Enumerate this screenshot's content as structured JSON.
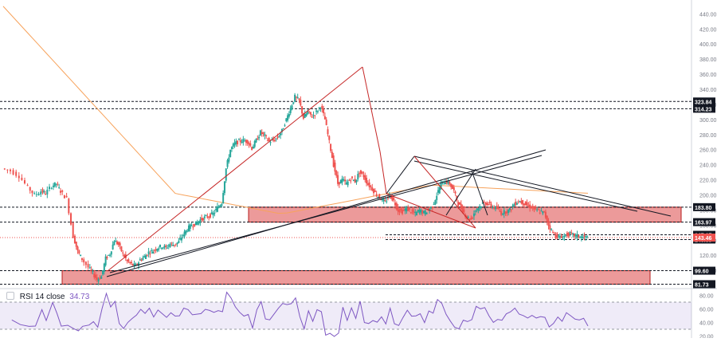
{
  "chart_data": [
    {
      "type": "candlestick",
      "y_axis": {
        "ticks": [
          100,
          120,
          140,
          160,
          180,
          200,
          220,
          240,
          260,
          280,
          300,
          320,
          340,
          360,
          380,
          400,
          420,
          440
        ],
        "tick_labels": [
          "100.00",
          "120.00",
          "140.00",
          "160.00",
          "180.00",
          "200.00",
          "220.00",
          "240.00",
          "260.00",
          "280.00",
          "300.00",
          "320.00",
          "340.00",
          "360.00",
          "380.00",
          "400.00",
          "420.00",
          "440.00"
        ],
        "ylim": [
          78,
          452
        ]
      },
      "level_lines": [
        {
          "value": 323.84,
          "label": "323.84"
        },
        {
          "value": 314.23,
          "label": "314.23"
        },
        {
          "value": 183.8,
          "label": "183.80"
        },
        {
          "value": 163.97,
          "label": "163.97"
        },
        {
          "value": 147.17,
          "label": "147.17"
        },
        {
          "value": 140.89,
          "label": "140.89"
        },
        {
          "value": 99.6,
          "label": "99.60"
        },
        {
          "value": 81.73,
          "label": "81.73"
        }
      ],
      "current_price": {
        "value": 143.46,
        "label": "143.46"
      },
      "zones": [
        {
          "from": 163.97,
          "to": 183.8
        },
        {
          "from": 81.73,
          "to": 99.6
        }
      ],
      "moving_average_color": "#f7a35c",
      "up_color": "#26a69a",
      "down_color": "#ef5350",
      "price_path": [
        [
          0,
          235
        ],
        [
          4,
          232
        ],
        [
          8,
          225
        ],
        [
          12,
          210
        ],
        [
          15,
          200
        ],
        [
          18,
          205
        ],
        [
          20,
          202
        ],
        [
          23,
          212
        ],
        [
          25,
          215
        ],
        [
          27,
          205
        ],
        [
          30,
          195
        ],
        [
          33,
          145
        ],
        [
          35,
          125
        ],
        [
          37,
          115
        ],
        [
          40,
          104
        ],
        [
          42,
          96
        ],
        [
          44,
          88
        ],
        [
          46,
          92
        ],
        [
          48,
          116
        ],
        [
          50,
          122
        ],
        [
          52,
          140
        ],
        [
          54,
          134
        ],
        [
          56,
          122
        ],
        [
          58,
          112
        ],
        [
          60,
          108
        ],
        [
          62,
          106
        ],
        [
          64,
          114
        ],
        [
          66,
          118
        ],
        [
          68,
          124
        ],
        [
          70,
          126
        ],
        [
          72,
          130
        ],
        [
          74,
          132
        ],
        [
          76,
          130
        ],
        [
          78,
          135
        ],
        [
          80,
          134
        ],
        [
          82,
          138
        ],
        [
          84,
          147
        ],
        [
          86,
          155
        ],
        [
          88,
          160
        ],
        [
          90,
          162
        ],
        [
          92,
          167
        ],
        [
          94,
          170
        ],
        [
          96,
          172
        ],
        [
          98,
          175
        ],
        [
          100,
          183
        ],
        [
          102,
          190
        ],
        [
          104,
          235
        ],
        [
          106,
          260
        ],
        [
          108,
          268
        ],
        [
          110,
          271
        ],
        [
          112,
          272
        ],
        [
          114,
          271
        ],
        [
          116,
          262
        ],
        [
          118,
          272
        ],
        [
          120,
          283
        ],
        [
          122,
          278
        ],
        [
          124,
          271
        ],
        [
          126,
          272
        ],
        [
          128,
          276
        ],
        [
          130,
          285
        ],
        [
          132,
          300
        ],
        [
          134,
          315
        ],
        [
          136,
          330
        ],
        [
          138,
          325
        ],
        [
          140,
          302
        ],
        [
          142,
          310
        ],
        [
          144,
          304
        ],
        [
          146,
          310
        ],
        [
          148,
          318
        ],
        [
          150,
          300
        ],
        [
          152,
          270
        ],
        [
          154,
          240
        ],
        [
          156,
          215
        ],
        [
          158,
          220
        ],
        [
          160,
          215
        ],
        [
          162,
          222
        ],
        [
          164,
          218
        ],
        [
          166,
          230
        ],
        [
          168,
          225
        ],
        [
          170,
          214
        ],
        [
          172,
          208
        ],
        [
          174,
          200
        ],
        [
          176,
          195
        ],
        [
          178,
          190
        ],
        [
          180,
          200
        ],
        [
          182,
          192
        ],
        [
          184,
          180
        ],
        [
          186,
          178
        ],
        [
          188,
          182
        ],
        [
          190,
          178
        ],
        [
          192,
          175
        ],
        [
          194,
          180
        ],
        [
          196,
          176
        ],
        [
          198,
          180
        ],
        [
          200,
          185
        ],
        [
          202,
          200
        ],
        [
          204,
          215
        ],
        [
          206,
          218
        ],
        [
          208,
          215
        ],
        [
          210,
          205
        ],
        [
          212,
          188
        ],
        [
          214,
          180
        ],
        [
          216,
          170
        ],
        [
          218,
          168
        ],
        [
          220,
          180
        ],
        [
          222,
          185
        ],
        [
          224,
          190
        ],
        [
          226,
          188
        ],
        [
          228,
          184
        ],
        [
          230,
          182
        ],
        [
          232,
          176
        ],
        [
          234,
          178
        ],
        [
          236,
          180
        ],
        [
          238,
          188
        ],
        [
          240,
          192
        ],
        [
          242,
          190
        ],
        [
          244,
          186
        ],
        [
          246,
          184
        ],
        [
          248,
          180
        ],
        [
          250,
          178
        ],
        [
          252,
          176
        ],
        [
          254,
          160
        ],
        [
          256,
          150
        ],
        [
          258,
          145
        ],
        [
          260,
          143
        ],
        [
          262,
          147
        ],
        [
          264,
          148
        ],
        [
          266,
          146
        ],
        [
          268,
          145
        ],
        [
          270,
          144
        ],
        [
          272,
          143.5
        ]
      ],
      "rsi_indicator": {
        "title": "RSI 14 close",
        "last_value": 34.73,
        "last_value_label": "34.73",
        "period": 14,
        "band_upper": 70,
        "band_lower": 30,
        "ylim": [
          17,
          90
        ],
        "ticks": [
          20,
          40,
          60,
          80
        ],
        "tick_labels": [
          "20.00",
          "40.00",
          "60.00",
          "80.00"
        ],
        "line_color": "#7e57c2"
      }
    }
  ]
}
